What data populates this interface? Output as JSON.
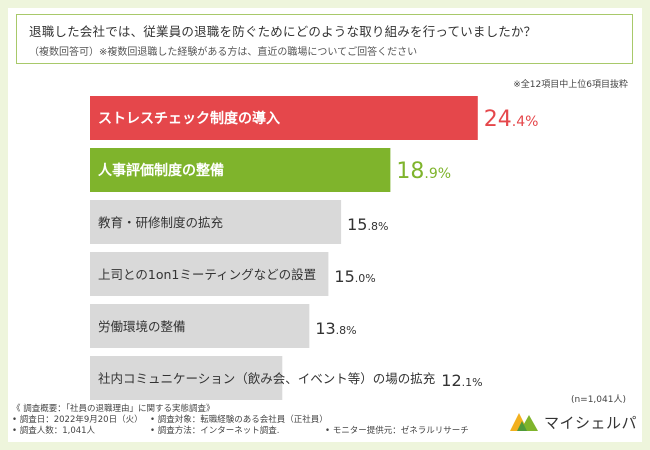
{
  "question": {
    "line1": "退職した会社では、従業員の退職を防ぐためにどのような取り組みを行っていましたか？",
    "line2": "（複数回答可）※複数回退職した経験がある方は、直近の職場についてご回答ください"
  },
  "note": "※全12項目中上位6項目抜粋",
  "n_label": "(n=1,041人)",
  "chart_data": {
    "type": "bar",
    "orientation": "horizontal",
    "title": "退職した会社では、従業員の退職を防ぐためにどのような取り組みを行っていましたか？",
    "categories": [
      "ストレスチェック制度の導入",
      "人事評価制度の整備",
      "教育・研修制度の拡充",
      "上司との1on1ミーティングなどの設置",
      "労働環境の整備",
      "社内コミュニケーション（飲み会、イベント等）の場の拡充"
    ],
    "values": [
      24.4,
      18.9,
      15.8,
      15.0,
      13.8,
      12.1
    ],
    "unit": "%",
    "xlim": [
      0,
      28
    ],
    "colors": [
      "#e5474b",
      "#7fb42c",
      "#d9d9d9",
      "#d9d9d9",
      "#d9d9d9",
      "#d9d9d9"
    ],
    "value_colors": [
      "#e5474b",
      "#7fb42c",
      "#333333",
      "#333333",
      "#333333",
      "#333333"
    ]
  },
  "survey": {
    "title": "《 調査概要：「社員の退職理由」に関する実態調査》",
    "date": "• 調査日：2022年9月20日（火）",
    "target": "• 調査対象：転職経験のある会社員（正社員）",
    "count": "• 調査人数：1,041人",
    "method": "• 調査方法：インターネット調査.",
    "provider": "• モニター提供元：ゼネラルリサーチ"
  },
  "logo": {
    "text": "マイシェルパ",
    "colors": [
      "#f2b01e",
      "#7fb42c",
      "#4f9a3a"
    ]
  }
}
